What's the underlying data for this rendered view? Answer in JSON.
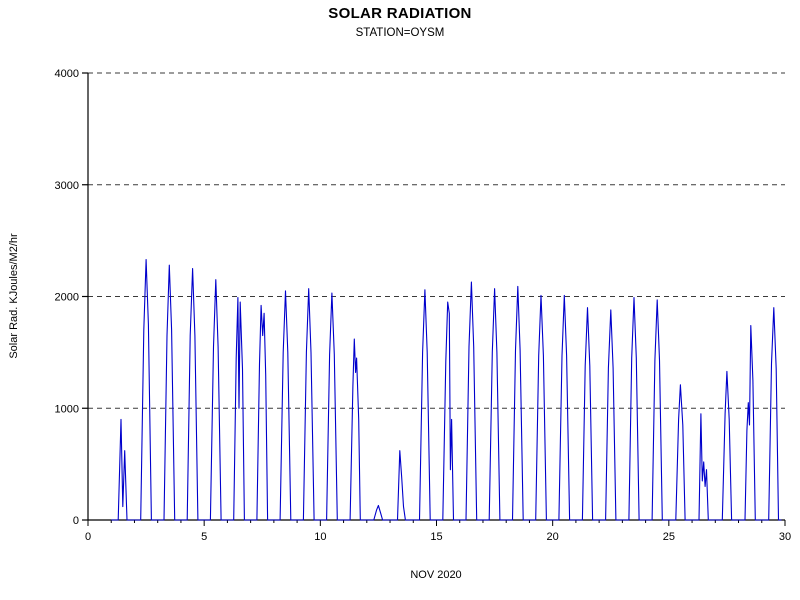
{
  "header": {
    "title": "SOLAR RADIATION",
    "subtitle": "STATION=OYSM"
  },
  "chart_data": {
    "type": "line",
    "title": "SOLAR RADIATION",
    "subtitle": "STATION=OYSM",
    "xlabel": "NOV 2020",
    "ylabel": "Solar Rad. KJoules/M2/hr",
    "xlim": [
      0,
      30
    ],
    "ylim": [
      0,
      4000
    ],
    "x_ticks": [
      0,
      5,
      10,
      15,
      20,
      25,
      30
    ],
    "y_ticks": [
      0,
      1000,
      2000,
      3000,
      4000
    ],
    "grid": "horizontal-dashed",
    "legend": "none",
    "line_color": "#0000cc",
    "series": [
      {
        "name": "solar-radiation",
        "points": [
          [
            1.0,
            0
          ],
          [
            1.3,
            0
          ],
          [
            1.42,
            900
          ],
          [
            1.5,
            120
          ],
          [
            1.58,
            620
          ],
          [
            1.68,
            0
          ],
          [
            2.27,
            0
          ],
          [
            2.4,
            1700
          ],
          [
            2.5,
            2330
          ],
          [
            2.6,
            1750
          ],
          [
            2.73,
            0
          ],
          [
            3.27,
            0
          ],
          [
            3.4,
            1650
          ],
          [
            3.5,
            2280
          ],
          [
            3.6,
            1700
          ],
          [
            3.73,
            0
          ],
          [
            4.27,
            0
          ],
          [
            4.4,
            1650
          ],
          [
            4.5,
            2250
          ],
          [
            4.6,
            1650
          ],
          [
            4.73,
            0
          ],
          [
            5.27,
            0
          ],
          [
            5.4,
            1550
          ],
          [
            5.5,
            2150
          ],
          [
            5.6,
            1550
          ],
          [
            5.73,
            0
          ],
          [
            6.27,
            0
          ],
          [
            6.38,
            1450
          ],
          [
            6.45,
            1990
          ],
          [
            6.5,
            1000
          ],
          [
            6.55,
            1950
          ],
          [
            6.65,
            1350
          ],
          [
            6.73,
            0
          ],
          [
            7.27,
            0
          ],
          [
            7.38,
            1400
          ],
          [
            7.45,
            1920
          ],
          [
            7.52,
            1650
          ],
          [
            7.58,
            1850
          ],
          [
            7.65,
            1300
          ],
          [
            7.73,
            0
          ],
          [
            8.27,
            0
          ],
          [
            8.4,
            1500
          ],
          [
            8.5,
            2050
          ],
          [
            8.6,
            1500
          ],
          [
            8.73,
            0
          ],
          [
            9.27,
            0
          ],
          [
            9.4,
            1500
          ],
          [
            9.5,
            2070
          ],
          [
            9.6,
            1500
          ],
          [
            9.73,
            0
          ],
          [
            10.27,
            0
          ],
          [
            10.4,
            1480
          ],
          [
            10.5,
            2030
          ],
          [
            10.6,
            1480
          ],
          [
            10.73,
            0
          ],
          [
            11.28,
            0
          ],
          [
            11.4,
            1200
          ],
          [
            11.46,
            1620
          ],
          [
            11.52,
            1320
          ],
          [
            11.56,
            1450
          ],
          [
            11.65,
            900
          ],
          [
            11.72,
            0
          ],
          [
            12.3,
            0
          ],
          [
            12.42,
            90
          ],
          [
            12.5,
            130
          ],
          [
            12.6,
            60
          ],
          [
            12.68,
            0
          ],
          [
            13.32,
            0
          ],
          [
            13.42,
            620
          ],
          [
            13.5,
            380
          ],
          [
            13.58,
            120
          ],
          [
            13.66,
            0
          ],
          [
            14.27,
            0
          ],
          [
            14.4,
            1500
          ],
          [
            14.5,
            2060
          ],
          [
            14.6,
            1500
          ],
          [
            14.73,
            0
          ],
          [
            15.27,
            0
          ],
          [
            15.4,
            1420
          ],
          [
            15.48,
            1950
          ],
          [
            15.55,
            1850
          ],
          [
            15.6,
            450
          ],
          [
            15.65,
            900
          ],
          [
            15.73,
            0
          ],
          [
            16.27,
            0
          ],
          [
            16.4,
            1550
          ],
          [
            16.5,
            2130
          ],
          [
            16.6,
            1550
          ],
          [
            16.73,
            0
          ],
          [
            17.27,
            0
          ],
          [
            17.4,
            1500
          ],
          [
            17.5,
            2070
          ],
          [
            17.6,
            1500
          ],
          [
            17.73,
            0
          ],
          [
            18.27,
            0
          ],
          [
            18.4,
            1520
          ],
          [
            18.5,
            2090
          ],
          [
            18.6,
            1520
          ],
          [
            18.73,
            0
          ],
          [
            19.27,
            0
          ],
          [
            19.4,
            1470
          ],
          [
            19.5,
            2010
          ],
          [
            19.6,
            1470
          ],
          [
            19.73,
            0
          ],
          [
            20.27,
            0
          ],
          [
            20.4,
            1470
          ],
          [
            20.5,
            2010
          ],
          [
            20.6,
            1470
          ],
          [
            20.73,
            0
          ],
          [
            21.28,
            0
          ],
          [
            21.4,
            1380
          ],
          [
            21.5,
            1900
          ],
          [
            21.6,
            1380
          ],
          [
            21.72,
            0
          ],
          [
            22.28,
            0
          ],
          [
            22.4,
            1360
          ],
          [
            22.5,
            1880
          ],
          [
            22.6,
            1360
          ],
          [
            22.72,
            0
          ],
          [
            23.28,
            0
          ],
          [
            23.4,
            1450
          ],
          [
            23.5,
            1990
          ],
          [
            23.6,
            1450
          ],
          [
            23.72,
            0
          ],
          [
            24.28,
            0
          ],
          [
            24.4,
            1430
          ],
          [
            24.5,
            1970
          ],
          [
            24.6,
            1430
          ],
          [
            24.72,
            0
          ],
          [
            25.3,
            0
          ],
          [
            25.42,
            900
          ],
          [
            25.5,
            1210
          ],
          [
            25.6,
            850
          ],
          [
            25.7,
            0
          ],
          [
            26.3,
            0
          ],
          [
            26.38,
            950
          ],
          [
            26.44,
            350
          ],
          [
            26.5,
            520
          ],
          [
            26.56,
            300
          ],
          [
            26.62,
            450
          ],
          [
            26.7,
            0
          ],
          [
            27.3,
            0
          ],
          [
            27.42,
            950
          ],
          [
            27.5,
            1330
          ],
          [
            27.6,
            900
          ],
          [
            27.7,
            0
          ],
          [
            28.28,
            0
          ],
          [
            28.36,
            800
          ],
          [
            28.42,
            1050
          ],
          [
            28.47,
            850
          ],
          [
            28.53,
            1740
          ],
          [
            28.62,
            1250
          ],
          [
            28.72,
            0
          ],
          [
            29.3,
            0
          ],
          [
            29.42,
            1400
          ],
          [
            29.52,
            1900
          ],
          [
            29.62,
            1350
          ],
          [
            29.72,
            0
          ],
          [
            29.85,
            0
          ]
        ]
      }
    ]
  }
}
